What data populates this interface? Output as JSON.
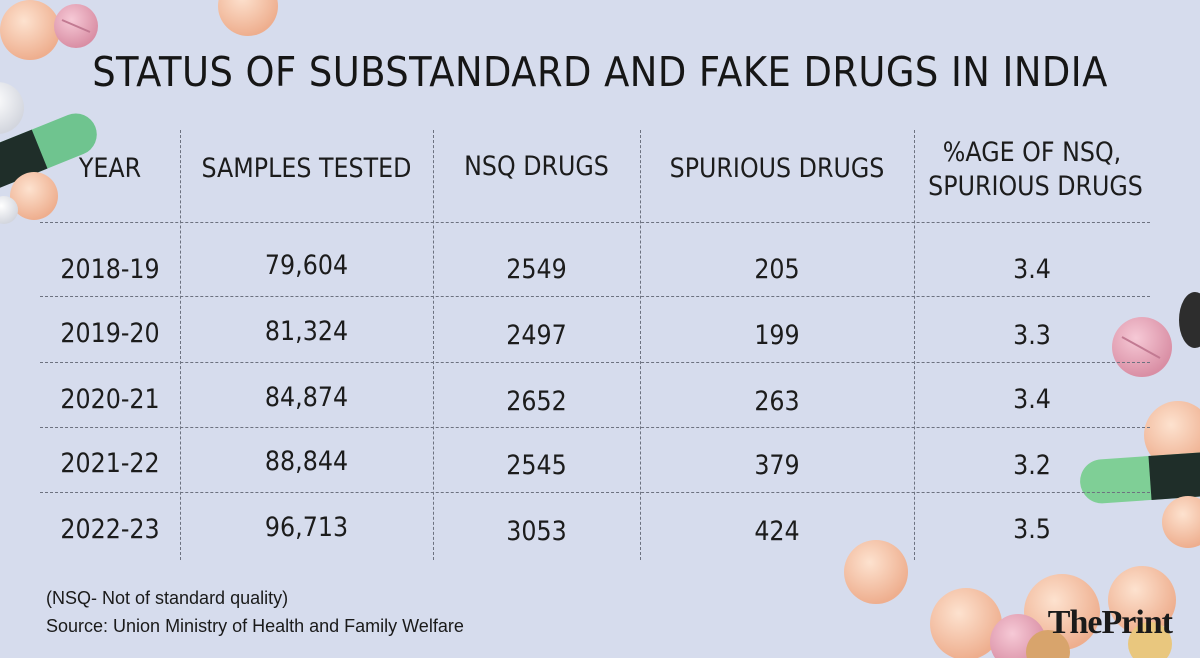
{
  "title": "STATUS OF SUBSTANDARD AND FAKE DRUGS IN INDIA",
  "headers": {
    "year": "YEAR",
    "samples": "SAMPLES TESTED",
    "nsq": "NSQ DRUGS",
    "spurious": "SPURIOUS DRUGS",
    "pct_line1": "%AGE OF NSQ,",
    "pct_line2": "SPURIOUS DRUGS"
  },
  "rows": [
    {
      "year": "2018-19",
      "samples": "79,604",
      "nsq": "2549",
      "spurious": "205",
      "pct": "3.4"
    },
    {
      "year": "2019-20",
      "samples": "81,324",
      "nsq": "2497",
      "spurious": "199",
      "pct": "3.3"
    },
    {
      "year": "2020-21",
      "samples": "84,874",
      "nsq": "2652",
      "spurious": "263",
      "pct": "3.4"
    },
    {
      "year": "2021-22",
      "samples": "88,844",
      "nsq": "2545",
      "spurious": "379",
      "pct": "3.2"
    },
    {
      "year": "2022-23",
      "samples": "96,713",
      "nsq": "3053",
      "spurious": "424",
      "pct": "3.5"
    }
  ],
  "footnote": "(NSQ- Not of standard quality)",
  "source": "Source: Union Ministry of Health and Family Welfare",
  "logo": {
    "the": "The",
    "print": "Print"
  },
  "colors": {
    "background": "#d6dced",
    "text": "#1a1a1a",
    "grid": "#6d7280"
  }
}
